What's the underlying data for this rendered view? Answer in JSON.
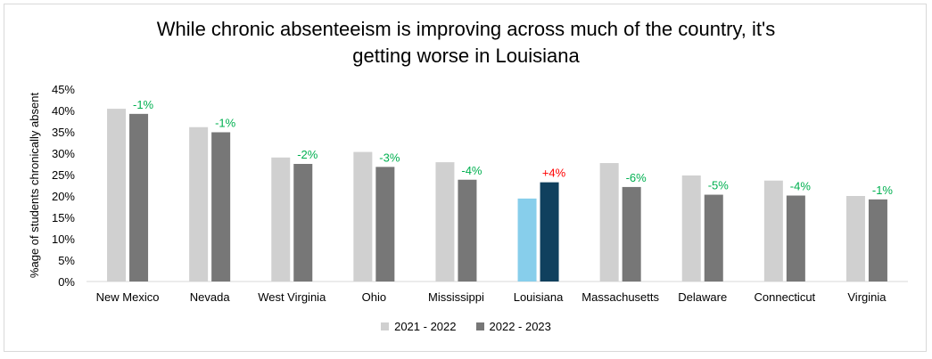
{
  "title_line1": "While chronic absenteeism is improving across much of the country, it's",
  "title_line2": "getting worse in Louisiana",
  "colors": {
    "series_2021": "#d0d0d0",
    "series_2022": "#777777",
    "louisiana_2021": "#87ceeb",
    "louisiana_2022": "#10405e",
    "label_positive_change": "#ff0000",
    "label_negative_change": "#00b050",
    "axis": "#d9d9d9",
    "text": "#000000"
  },
  "chart_data": {
    "type": "bar",
    "title": "While chronic absenteeism is improving across much of the country, it's getting worse in Louisiana",
    "xlabel": "",
    "ylabel": "%age of students chronically absent",
    "ylim": [
      0,
      45
    ],
    "yticks": [
      "0%",
      "5%",
      "10%",
      "15%",
      "20%",
      "25%",
      "30%",
      "35%",
      "40%",
      "45%"
    ],
    "grid": false,
    "legend_position": "bottom",
    "categories": [
      "New Mexico",
      "Nevada",
      "West Virginia",
      "Ohio",
      "Mississippi",
      "Louisiana",
      "Massachusetts",
      "Delaware",
      "Connecticut",
      "Virginia"
    ],
    "series": [
      {
        "name": "2021 - 2022",
        "values": [
          40.4,
          36.1,
          29.0,
          30.3,
          27.9,
          19.4,
          27.7,
          24.8,
          23.6,
          20.0
        ]
      },
      {
        "name": "2022 - 2023",
        "values": [
          39.2,
          34.9,
          27.5,
          26.8,
          23.8,
          23.2,
          22.1,
          20.3,
          20.1,
          19.2
        ]
      }
    ],
    "change_labels": [
      "-1%",
      "-1%",
      "-2%",
      "-3%",
      "-4%",
      "+4%",
      "-6%",
      "-5%",
      "-4%",
      "-1%"
    ],
    "highlight_category": "Louisiana"
  }
}
